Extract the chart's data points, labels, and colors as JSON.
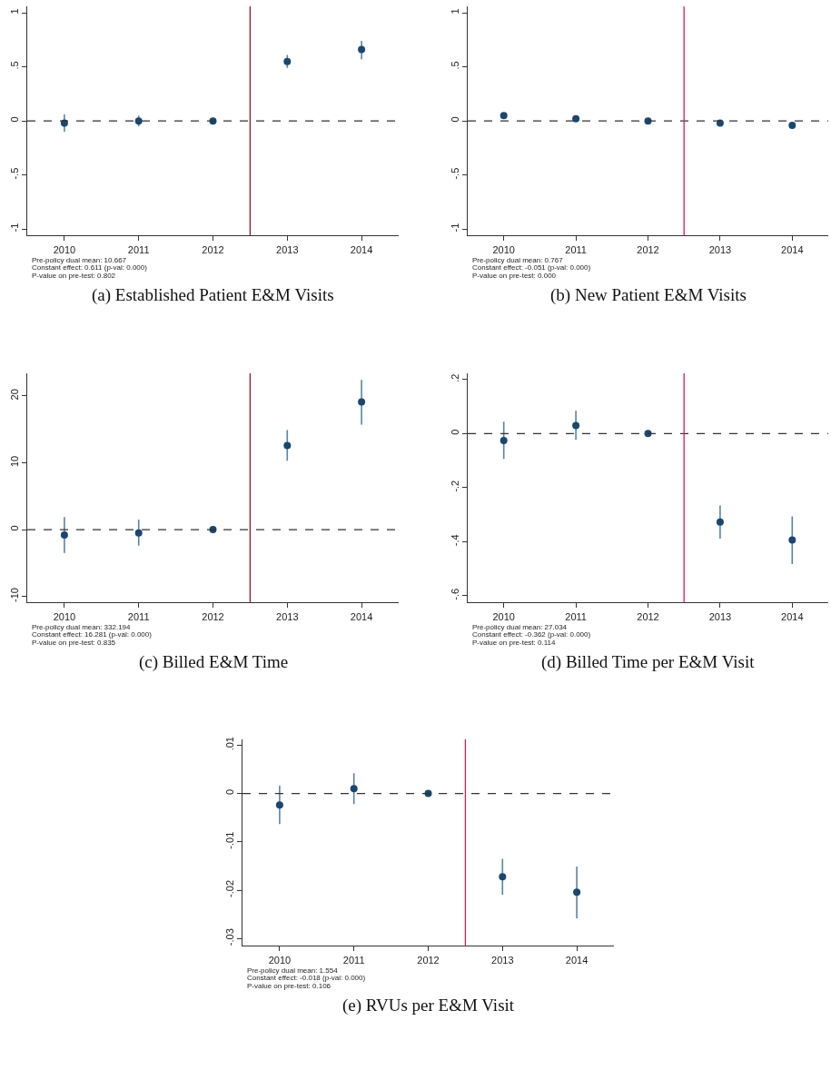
{
  "chart_data": [
    {
      "type": "scatter",
      "title": "(a) Established Patient E&M Visits",
      "x": [
        2010,
        2011,
        2012,
        2013,
        2014
      ],
      "marker": "circle",
      "series": [
        {
          "color": "#1a476f",
          "values": [
            -0.02,
            0,
            0,
            0.55,
            0.66
          ],
          "errors": [
            [
              -0.1,
              0.06
            ],
            [
              -0.05,
              0.05
            ],
            null,
            [
              0.49,
              0.61
            ],
            [
              0.57,
              0.74
            ]
          ]
        }
      ],
      "xlim": [
        2009.5,
        2014.5
      ],
      "xticks": [
        2010,
        2011,
        2012,
        2013,
        2014
      ],
      "ylim": [
        -1.06,
        1.06
      ],
      "yticks": [
        {
          "value": -1,
          "label": "-1"
        },
        {
          "value": -0.5,
          "label": "-.5"
        },
        {
          "value": 0,
          "label": "0"
        },
        {
          "value": 0.5,
          "label": ".5"
        },
        {
          "value": 1,
          "label": "1"
        }
      ],
      "ref_lines": [
        {
          "axis": "y",
          "value": 0,
          "color": "#333333",
          "line_style": "dashed"
        },
        {
          "axis": "x",
          "value": 2012.5,
          "color": "#8b1a2b",
          "line_style": "solid"
        }
      ],
      "annotations": [
        "Pre-policy dual mean: 10.667",
        "Constant effect: 0.611 (p-val: 0.000)",
        "P-value on pre-test: 0.802"
      ]
    },
    {
      "type": "scatter",
      "title": "(b) New Patient E&M Visits",
      "x": [
        2010,
        2011,
        2012,
        2013,
        2014
      ],
      "marker": "circle",
      "series": [
        {
          "color": "#1a476f",
          "values": [
            0.05,
            0.02,
            0,
            -0.02,
            -0.04
          ]
        }
      ],
      "xlim": [
        2009.5,
        2014.5
      ],
      "xticks": [
        2010,
        2011,
        2012,
        2013,
        2014
      ],
      "ylim": [
        -1.06,
        1.06
      ],
      "yticks": [
        {
          "value": -1,
          "label": "-1"
        },
        {
          "value": -0.5,
          "label": "-.5"
        },
        {
          "value": 0,
          "label": "0"
        },
        {
          "value": 0.5,
          "label": ".5"
        },
        {
          "value": 1,
          "label": "1"
        }
      ],
      "ref_lines": [
        {
          "axis": "y",
          "value": 0,
          "color": "#333333",
          "line_style": "dashed"
        },
        {
          "axis": "x",
          "value": 2012.5,
          "color": "#d6204f",
          "line_style": "solid"
        }
      ],
      "annotations": [
        "Pre-policy dual mean: 0.767",
        "Constant effect: -0.051 (p-val: 0.000)",
        "P-value on pre-test: 0.000"
      ]
    },
    {
      "type": "scatter",
      "title": "(c) Billed E&M Time",
      "x": [
        2010,
        2011,
        2012,
        2013,
        2014
      ],
      "marker": "circle",
      "series": [
        {
          "color": "#1a476f",
          "values": [
            -0.8,
            -0.5,
            0,
            12.6,
            19.1
          ],
          "errors": [
            [
              -3.5,
              1.9
            ],
            [
              -2.4,
              1.5
            ],
            null,
            [
              10.3,
              14.9
            ],
            [
              15.7,
              22.4
            ]
          ]
        }
      ],
      "xlim": [
        2009.5,
        2014.5
      ],
      "xticks": [
        2010,
        2011,
        2012,
        2013,
        2014
      ],
      "ylim": [
        -10.9,
        23.4
      ],
      "yticks": [
        -10,
        0,
        10,
        20
      ],
      "ref_lines": [
        {
          "axis": "y",
          "value": 0,
          "color": "#333333",
          "line_style": "dashed"
        },
        {
          "axis": "x",
          "value": 2012.5,
          "color": "#8b1a2b",
          "line_style": "solid"
        }
      ],
      "annotations": [
        "Pre-policy dual mean: 332.194",
        "Constant effect: 16.281 (p-val: 0.000)",
        "P-value on pre-test: 0.835"
      ]
    },
    {
      "type": "scatter",
      "title": "(d) Billed Time per E&M Visit",
      "x": [
        2010,
        2011,
        2012,
        2013,
        2014
      ],
      "marker": "circle",
      "series": [
        {
          "color": "#1a476f",
          "values": [
            -0.026,
            0.03,
            0,
            -0.327,
            -0.394
          ],
          "errors": [
            [
              -0.094,
              0.044
            ],
            [
              -0.023,
              0.084
            ],
            null,
            [
              -0.389,
              -0.266
            ],
            [
              -0.483,
              -0.306
            ]
          ]
        }
      ],
      "xlim": [
        2009.5,
        2014.5
      ],
      "xticks": [
        2010,
        2011,
        2012,
        2013,
        2014
      ],
      "ylim": [
        -0.625,
        0.223
      ],
      "yticks": [
        {
          "value": -0.6,
          "label": "-.6"
        },
        {
          "value": -0.4,
          "label": "-.4"
        },
        {
          "value": -0.2,
          "label": "-.2"
        },
        {
          "value": 0,
          "label": "0"
        },
        {
          "value": 0.2,
          "label": ".2"
        }
      ],
      "ref_lines": [
        {
          "axis": "y",
          "value": 0,
          "color": "#333333",
          "line_style": "dashed"
        },
        {
          "axis": "x",
          "value": 2012.5,
          "color": "#d6204f",
          "line_style": "solid"
        }
      ],
      "annotations": [
        "Pre-policy dual mean: 27.034",
        "Constant effect: -0.362 (p-val: 0.000)",
        "P-value on pre-test: 0.114"
      ]
    },
    {
      "type": "scatter",
      "title": "(e) RVUs per E&M Visit",
      "x": [
        2010,
        2011,
        2012,
        2013,
        2014
      ],
      "marker": "circle",
      "series": [
        {
          "color": "#1a476f",
          "values": [
            -0.0024,
            0.001,
            0,
            -0.0172,
            -0.0204
          ],
          "errors": [
            [
              -0.0063,
              0.0016
            ],
            [
              -0.0022,
              0.0042
            ],
            null,
            [
              -0.0209,
              -0.0135
            ],
            [
              -0.0258,
              -0.0151
            ]
          ]
        }
      ],
      "xlim": [
        2009.5,
        2014.5
      ],
      "xticks": [
        2010,
        2011,
        2012,
        2013,
        2014
      ],
      "ylim": [
        -0.0315,
        0.0112
      ],
      "yticks": [
        {
          "value": -0.03,
          "label": "-.03"
        },
        {
          "value": -0.02,
          "label": "-.02"
        },
        {
          "value": -0.01,
          "label": "-.01"
        },
        {
          "value": 0,
          "label": "0"
        },
        {
          "value": 0.01,
          "label": ".01"
        }
      ],
      "ref_lines": [
        {
          "axis": "y",
          "value": 0,
          "color": "#333333",
          "line_style": "dashed"
        },
        {
          "axis": "x",
          "value": 2012.5,
          "color": "#d6204f",
          "line_style": "solid"
        }
      ],
      "annotations": [
        "Pre-policy dual mean: 1.554",
        "Constant effect: -0.018 (p-val: 0.000)",
        "P-value on pre-test: 0.106"
      ]
    }
  ]
}
